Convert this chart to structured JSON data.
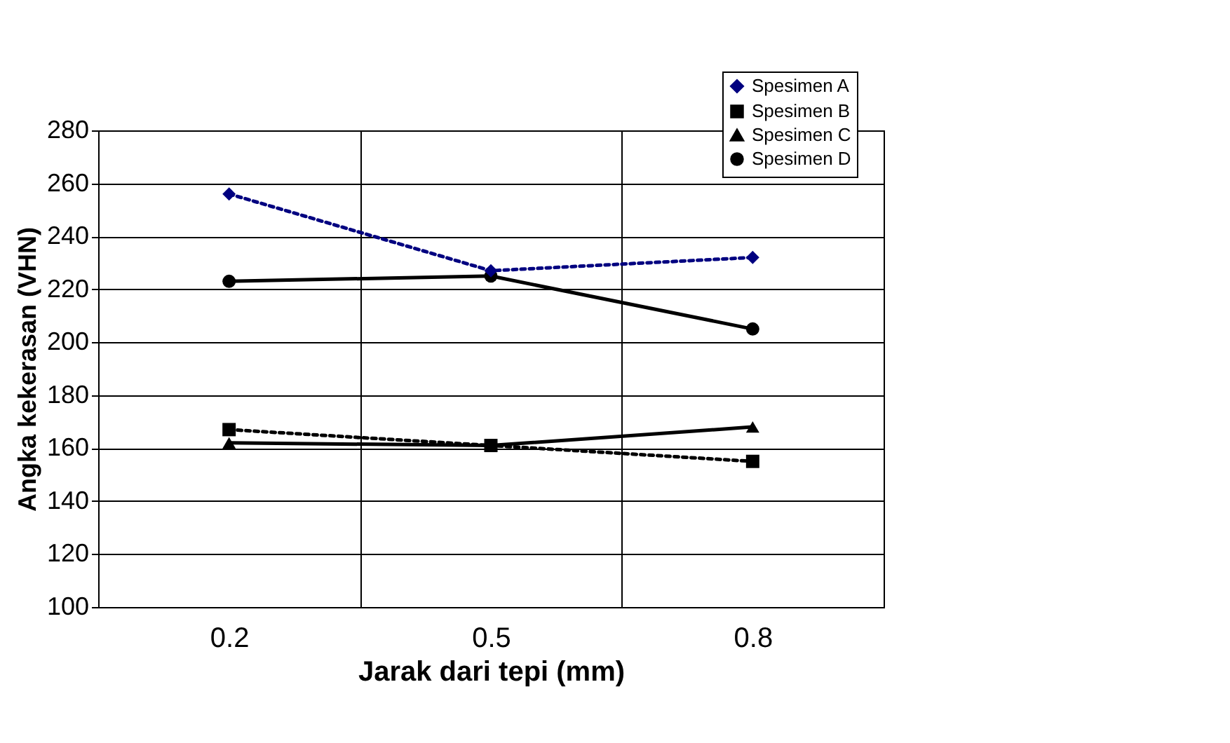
{
  "chart_data": {
    "type": "line",
    "xlabel": "Jarak dari tepi (mm)",
    "ylabel": "Angka kekerasan (VHN)",
    "categories": [
      "0.2",
      "0.5",
      "0.8"
    ],
    "series": [
      {
        "name": "Spesimen A",
        "color": "#000080",
        "values": [
          256,
          227,
          232
        ],
        "marker": "diamond",
        "line_style": "dotted"
      },
      {
        "name": "Spesimen B",
        "color": "#000000",
        "values": [
          167,
          161,
          155
        ],
        "marker": "square",
        "line_style": "dotted"
      },
      {
        "name": "Spesimen C",
        "color": "#000000",
        "values": [
          162,
          161,
          168
        ],
        "marker": "triangle",
        "line_style": "solid"
      },
      {
        "name": "Spesimen D",
        "color": "#000000",
        "values": [
          223,
          225,
          205
        ],
        "marker": "circle",
        "line_style": "solid"
      }
    ],
    "ylim": [
      100,
      280
    ],
    "yticks": [
      100,
      120,
      140,
      160,
      180,
      200,
      220,
      240,
      260,
      280
    ],
    "grid": true,
    "legend": "top right"
  }
}
